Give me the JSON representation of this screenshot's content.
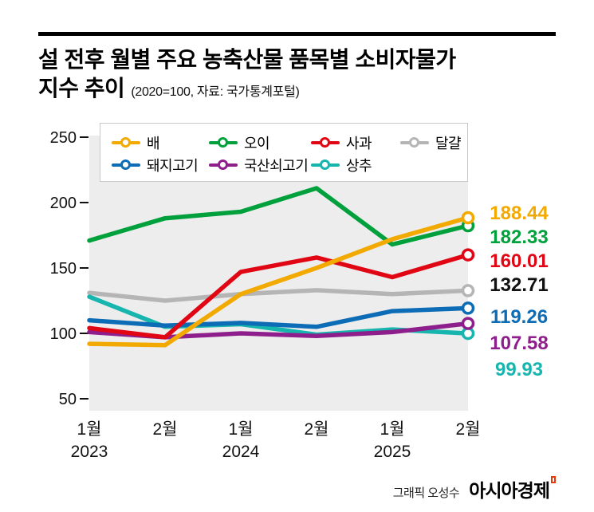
{
  "title": {
    "line1": "설 전후 월별 주요 농축산물 품목별 소비자물가",
    "line2": "지수 추이",
    "subtitle": "(2020=100, 자료: 국가통계포털)"
  },
  "credit": {
    "text": "그래픽 오성수",
    "brand": "아시아경제"
  },
  "chart_data": {
    "type": "line",
    "title": "설 전후 월별 주요 농축산물 품목별 소비자물가 지수 추이",
    "note": "2020=100, 자료: 국가통계포털",
    "x_labels": [
      {
        "month": "1월",
        "year": "2023"
      },
      {
        "month": "2월",
        "year": ""
      },
      {
        "month": "1월",
        "year": "2024"
      },
      {
        "month": "2월",
        "year": ""
      },
      {
        "month": "1월",
        "year": "2025"
      },
      {
        "month": "2월",
        "year": ""
      }
    ],
    "ylim": [
      50,
      250
    ],
    "yticks": [
      250,
      200,
      150,
      100,
      50
    ],
    "grid": false,
    "legend_position": "top",
    "series": [
      {
        "key": "pear",
        "name": "배",
        "color": "#f2a900",
        "label_color": "#f2a900",
        "end_label": "188.44",
        "values": [
          92,
          91,
          130,
          150,
          172,
          188.44
        ]
      },
      {
        "key": "cucumber",
        "name": "오이",
        "color": "#00a03c",
        "label_color": "#00a03c",
        "end_label": "182.33",
        "values": [
          171,
          188,
          193,
          211,
          168,
          182.33
        ]
      },
      {
        "key": "apple",
        "name": "사과",
        "color": "#e00613",
        "label_color": "#e00613",
        "end_label": "160.01",
        "values": [
          104,
          97,
          147,
          158,
          143,
          160.01
        ]
      },
      {
        "key": "egg",
        "name": "달걀",
        "color": "#b5b5b5",
        "label_color": "#111111",
        "end_label": "132.71",
        "values": [
          131,
          125,
          130,
          133,
          130,
          132.71
        ]
      },
      {
        "key": "pork",
        "name": "돼지고기",
        "color": "#0c6cb5",
        "label_color": "#0c6cb5",
        "end_label": "119.26",
        "values": [
          110,
          106,
          108,
          105,
          117,
          119.26
        ]
      },
      {
        "key": "beef",
        "name": "국산쇠고기",
        "color": "#8e1e8c",
        "label_color": "#8e1e8c",
        "end_label": "107.58",
        "values": [
          101,
          97,
          100,
          98,
          101,
          107.58
        ]
      },
      {
        "key": "lettuce",
        "name": "상추",
        "color": "#16b5ae",
        "label_color": "#16b5ae",
        "end_label": "99.93",
        "values": [
          128,
          105,
          107,
          99,
          103,
          99.93
        ]
      }
    ],
    "legend_rows": [
      [
        "pear",
        "cucumber",
        "apple",
        "egg"
      ],
      [
        "pork",
        "beef",
        "lettuce"
      ]
    ]
  }
}
